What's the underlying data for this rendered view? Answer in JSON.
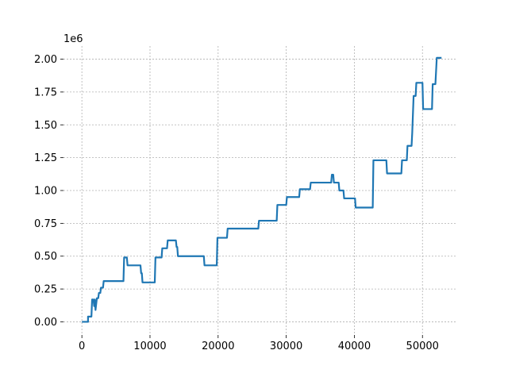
{
  "chart_data": {
    "type": "line",
    "title": "",
    "xlabel": "",
    "ylabel": "",
    "y_offset_label": "1e6",
    "xlim": [
      -2700,
      55100
    ],
    "ylim": [
      -100000,
      2100000
    ],
    "x_ticks": [
      0,
      10000,
      20000,
      30000,
      40000,
      50000
    ],
    "x_tick_labels": [
      "0",
      "10000",
      "20000",
      "30000",
      "40000",
      "50000"
    ],
    "y_ticks": [
      0,
      250000,
      500000,
      750000,
      1000000,
      1250000,
      1500000,
      1750000,
      2000000
    ],
    "y_tick_labels": [
      "0.00",
      "0.25",
      "0.50",
      "0.75",
      "1.00",
      "1.25",
      "1.50",
      "1.75",
      "2.00"
    ],
    "grid": true,
    "legend": "none",
    "line_color": "#1f77b4",
    "grid_color": "#b0b0b0",
    "series": [
      {
        "points": [
          [
            0,
            0
          ],
          [
            900,
            0
          ],
          [
            900,
            40000
          ],
          [
            1400,
            40000
          ],
          [
            1500,
            170000
          ],
          [
            1700,
            170000
          ],
          [
            1800,
            120000
          ],
          [
            1900,
            170000
          ],
          [
            2000,
            90000
          ],
          [
            2200,
            180000
          ],
          [
            2400,
            180000
          ],
          [
            2500,
            220000
          ],
          [
            2700,
            220000
          ],
          [
            2800,
            260000
          ],
          [
            3100,
            260000
          ],
          [
            3200,
            310000
          ],
          [
            6100,
            310000
          ],
          [
            6200,
            490000
          ],
          [
            6600,
            490000
          ],
          [
            6700,
            430000
          ],
          [
            8600,
            430000
          ],
          [
            8700,
            370000
          ],
          [
            8800,
            370000
          ],
          [
            8900,
            300000
          ],
          [
            10700,
            300000
          ],
          [
            10800,
            490000
          ],
          [
            11700,
            490000
          ],
          [
            11800,
            560000
          ],
          [
            12500,
            560000
          ],
          [
            12600,
            620000
          ],
          [
            13800,
            620000
          ],
          [
            13900,
            570000
          ],
          [
            14000,
            570000
          ],
          [
            14100,
            500000
          ],
          [
            17900,
            500000
          ],
          [
            18000,
            430000
          ],
          [
            19800,
            430000
          ],
          [
            19900,
            640000
          ],
          [
            21300,
            640000
          ],
          [
            21400,
            710000
          ],
          [
            25900,
            710000
          ],
          [
            26000,
            770000
          ],
          [
            28600,
            770000
          ],
          [
            28700,
            890000
          ],
          [
            30000,
            890000
          ],
          [
            30100,
            950000
          ],
          [
            31900,
            950000
          ],
          [
            32000,
            1010000
          ],
          [
            33500,
            1010000
          ],
          [
            33600,
            1060000
          ],
          [
            36600,
            1060000
          ],
          [
            36700,
            1120000
          ],
          [
            36900,
            1120000
          ],
          [
            37000,
            1060000
          ],
          [
            37700,
            1060000
          ],
          [
            37800,
            1000000
          ],
          [
            38400,
            1000000
          ],
          [
            38500,
            940000
          ],
          [
            40100,
            940000
          ],
          [
            40200,
            870000
          ],
          [
            42700,
            870000
          ],
          [
            42800,
            1230000
          ],
          [
            44700,
            1230000
          ],
          [
            44800,
            1130000
          ],
          [
            46900,
            1130000
          ],
          [
            47000,
            1230000
          ],
          [
            47700,
            1230000
          ],
          [
            47800,
            1340000
          ],
          [
            48400,
            1340000
          ],
          [
            48500,
            1440000
          ],
          [
            48700,
            1720000
          ],
          [
            49000,
            1720000
          ],
          [
            49100,
            1820000
          ],
          [
            50000,
            1820000
          ],
          [
            50100,
            1620000
          ],
          [
            51400,
            1620000
          ],
          [
            51500,
            1810000
          ],
          [
            51900,
            1810000
          ],
          [
            52100,
            2010000
          ],
          [
            52800,
            2010000
          ]
        ]
      }
    ]
  }
}
